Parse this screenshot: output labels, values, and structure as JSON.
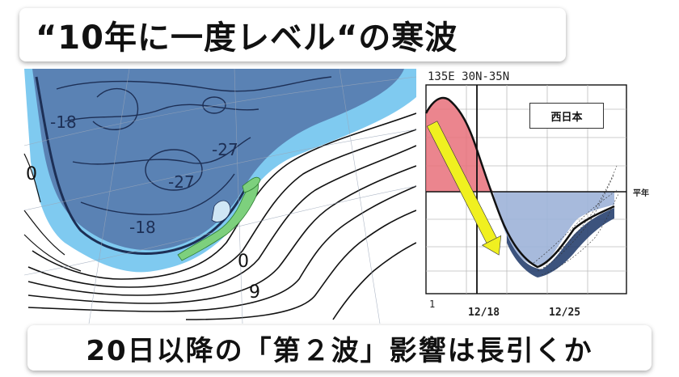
{
  "headline": "“10年に一度レベル“の寒波",
  "caption": "20日以降の「第２波」影響は長引くか",
  "map": {
    "contour_labels": [
      "-18",
      "-27",
      "-27",
      "-18",
      "0",
      "9",
      "0"
    ]
  },
  "chart": {
    "header": "135E  30N-35N",
    "region": "西日本",
    "normal_label": "平年",
    "x_ticks": [
      "1",
      "12/18",
      "12/25"
    ]
  },
  "colors": {
    "cold_dark": "#5a82b4",
    "cold_light": "#7fcaf0",
    "warm": "#e8707a",
    "arrow": "#f0f020",
    "japan": "#7dd07d"
  }
}
